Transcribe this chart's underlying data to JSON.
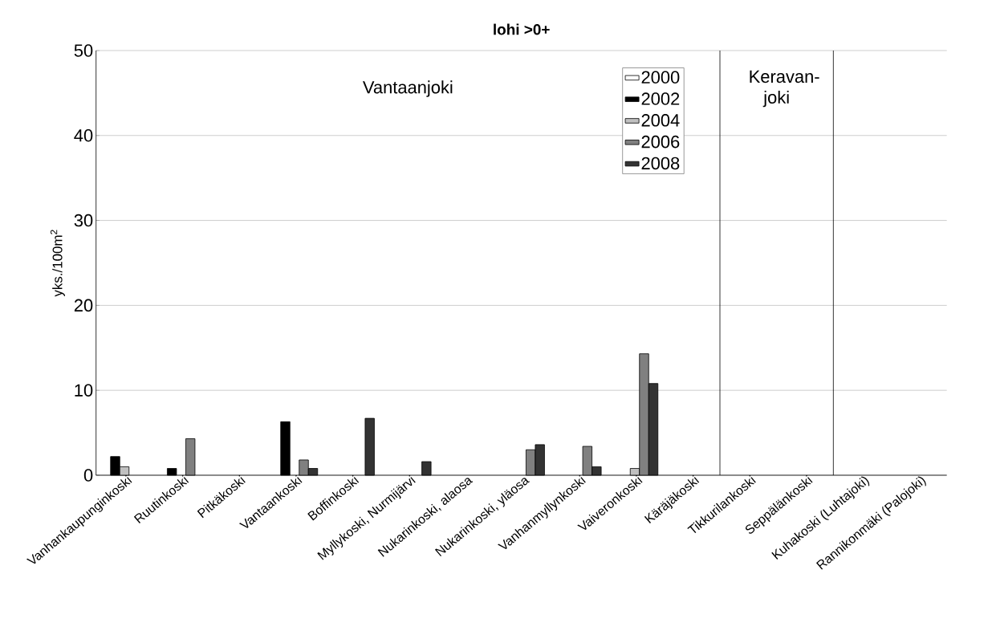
{
  "chart_data": {
    "type": "bar",
    "title": "lohi >0+",
    "ylabel": "yks./100m$^{2}$",
    "categories": [
      "Vanhankaupunginkoski",
      "Ruutinkoski",
      "Pitkäkoski",
      "Vantaankoski",
      "Boffinkoski",
      "Myllykoski, Nurmijärvi",
      "Nukarinkoski, alaosa",
      "Nukarinkoski, yläosa",
      "Vanhanmyllynkoski",
      "Vaiveronkoski",
      "Käräjäkoski",
      "Tikkurilankoski",
      "Seppälänkoski",
      "Kuhakoski (Luhtajoki)",
      "Rannikonmäki (Palojoki)"
    ],
    "series": [
      {
        "name": "2000",
        "color": "#ffffff",
        "values": [
          null,
          null,
          null,
          null,
          null,
          null,
          null,
          null,
          null,
          null,
          null,
          null,
          null,
          null,
          null
        ]
      },
      {
        "name": "2002",
        "color": "#000000",
        "values": [
          2.2,
          0.8,
          null,
          6.3,
          null,
          null,
          null,
          null,
          null,
          null,
          null,
          null,
          null,
          null,
          null
        ]
      },
      {
        "name": "2004",
        "color": "#c0c0c0",
        "values": [
          1.0,
          null,
          null,
          null,
          null,
          null,
          null,
          null,
          null,
          0.8,
          null,
          null,
          null,
          null,
          null
        ]
      },
      {
        "name": "2006",
        "color": "#808080",
        "values": [
          null,
          4.3,
          null,
          1.8,
          null,
          null,
          null,
          3.0,
          3.4,
          14.3,
          null,
          null,
          null,
          null,
          null
        ]
      },
      {
        "name": "2008",
        "color": "#333333",
        "values": [
          null,
          null,
          null,
          0.8,
          6.7,
          1.6,
          null,
          3.6,
          1.0,
          10.8,
          null,
          null,
          null,
          null,
          null
        ]
      }
    ],
    "ylim": [
      0,
      50
    ],
    "yticks": [
      0,
      10,
      20,
      30,
      40,
      50
    ],
    "grid": "y",
    "legend": "top",
    "annotations": [
      "Vantaanjoki",
      "Keravan-joki"
    ]
  }
}
